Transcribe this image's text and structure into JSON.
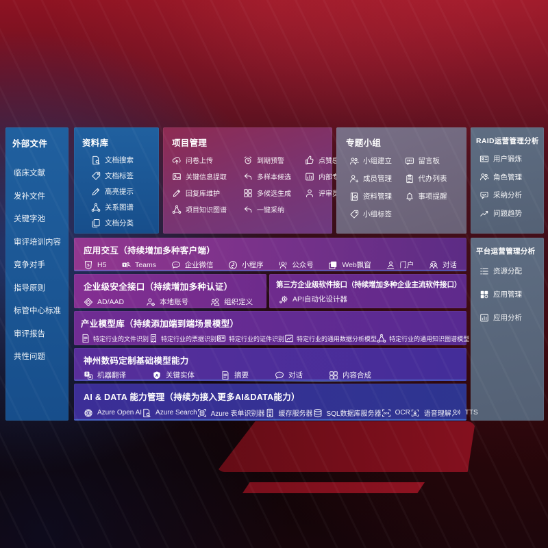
{
  "colors": {
    "background_red": "#8e1322",
    "blue_panel": "#1d5a9c",
    "maroon_panel": "#8e2b52",
    "mauve_panel": "#6f6880",
    "slate_panel": "#5d6b80",
    "purple_panel": "#7c2f8e",
    "violet_panel": "#582e9a",
    "indigo_panel": "#37309a",
    "accent_line": "#3f7ae0"
  },
  "panels": {
    "external_files": {
      "title": "外部文件",
      "items": [
        {
          "label": "临床文献"
        },
        {
          "label": "发补文件"
        },
        {
          "label": "关键字池"
        },
        {
          "label": "审评培训内容"
        },
        {
          "label": "竞争对手"
        },
        {
          "label": "指导原则"
        },
        {
          "label": "标管中心标准"
        },
        {
          "label": "审评报告"
        },
        {
          "label": "共性问题"
        }
      ]
    },
    "repository": {
      "title": "资料库",
      "items": [
        {
          "icon": "doc-search",
          "label": "文档搜索"
        },
        {
          "icon": "tag",
          "label": "文档标签"
        },
        {
          "icon": "pencil",
          "label": "高亮提示"
        },
        {
          "icon": "network",
          "label": "关系图谱"
        },
        {
          "icon": "copy",
          "label": "文档分类"
        }
      ]
    },
    "project_mgmt": {
      "title": "项目管理",
      "items": [
        {
          "icon": "cloud-upload",
          "label": "问卷上传"
        },
        {
          "icon": "alarm",
          "label": "到期预警"
        },
        {
          "icon": "thumbs-up",
          "label": "点赞感谢"
        },
        {
          "icon": "image",
          "label": "关键信息提取"
        },
        {
          "icon": "reply",
          "label": "多样本候选"
        },
        {
          "icon": "chart-window",
          "label": "内部专家排名"
        },
        {
          "icon": "pencil",
          "label": "回复库维护"
        },
        {
          "icon": "grid",
          "label": "多候选生成"
        },
        {
          "icon": "person",
          "label": "评审员画像"
        },
        {
          "icon": "network",
          "label": "项目知识图谱"
        },
        {
          "icon": "reply",
          "label": "一键采纳"
        }
      ]
    },
    "topic_groups": {
      "title": "专题小组",
      "items": [
        {
          "icon": "people",
          "label": "小组建立"
        },
        {
          "icon": "bbs",
          "label": "留言板"
        },
        {
          "icon": "person-plus",
          "label": "成员管理"
        },
        {
          "icon": "clipboard",
          "label": "代办列表"
        },
        {
          "icon": "book",
          "label": "资料管理"
        },
        {
          "icon": "bell",
          "label": "事项提醒"
        },
        {
          "icon": "tag",
          "label": "小组标签"
        }
      ]
    },
    "raid_analysis": {
      "title": "RAID运营管理分析",
      "items": [
        {
          "icon": "id-card",
          "label": "用户锻炼"
        },
        {
          "icon": "people",
          "label": "角色管理"
        },
        {
          "icon": "chat-qa",
          "label": "采纳分析"
        },
        {
          "icon": "trend",
          "label": "问题趋势"
        }
      ]
    },
    "platform_analysis": {
      "title": "平台运营管理分析",
      "items": [
        {
          "icon": "list",
          "label": "资源分配"
        },
        {
          "icon": "apps",
          "label": "应用管理"
        },
        {
          "icon": "chart-window",
          "label": "应用分析"
        }
      ]
    },
    "app_interaction": {
      "title": "应用交互（持续增加多种客户端）",
      "items": [
        {
          "icon": "h5",
          "label": "H5"
        },
        {
          "icon": "teams",
          "label": "Teams"
        },
        {
          "icon": "bubble",
          "label": "企业微信"
        },
        {
          "icon": "miniprogram",
          "label": "小程序"
        },
        {
          "icon": "official",
          "label": "公众号"
        },
        {
          "icon": "windows",
          "label": "Web飘窗"
        },
        {
          "icon": "portal",
          "label": "门户"
        },
        {
          "icon": "dialog",
          "label": "对话"
        }
      ]
    },
    "security_api": {
      "title": "企业级安全接口（持续增加多种认证）",
      "items": [
        {
          "icon": "ad",
          "label": "AD/AAD"
        },
        {
          "icon": "person-gear",
          "label": "本地账号"
        },
        {
          "icon": "org",
          "label": "组织定义"
        }
      ]
    },
    "third_party_api": {
      "title": "第三方企业级软件接口（持续增加多种企业主流软件接口）",
      "items": [
        {
          "icon": "api-gear",
          "label": "API自动化设计器"
        }
      ]
    },
    "industry_models": {
      "title": "产业模型库（持续添加端到端场景模型）",
      "items": [
        {
          "icon": "doc",
          "label": "特定行业的文件识别"
        },
        {
          "icon": "receipt",
          "label": "特定行业的票据识别"
        },
        {
          "icon": "id-card",
          "label": "特定行业的证件识别"
        },
        {
          "icon": "image-chart",
          "label": "特定行业的通用数据分析模型"
        },
        {
          "icon": "network",
          "label": "特定行业的通用知识图谱模型"
        }
      ]
    },
    "digital_china_models": {
      "title": "神州数码定制基础模型能力",
      "items": [
        {
          "icon": "translate",
          "label": "机器翻译"
        },
        {
          "icon": "shield-a",
          "label": "关键实体"
        },
        {
          "icon": "doc",
          "label": "摘要"
        },
        {
          "icon": "bubble",
          "label": "对话"
        },
        {
          "icon": "grid",
          "label": "内容合成"
        }
      ]
    },
    "ai_data_mgmt": {
      "title": "AI & DATA 能力管理（持续为接入更多AI&DATA能力）",
      "items": [
        {
          "icon": "openai",
          "label": "Azure Open AI"
        },
        {
          "icon": "doc-search",
          "label": "Azure Search"
        },
        {
          "icon": "form-scan",
          "label": "Azure 表单识别器"
        },
        {
          "icon": "server",
          "label": "缓存服务器"
        },
        {
          "icon": "database",
          "label": "SQL数据库服务器"
        },
        {
          "icon": "ocr",
          "label": "OCR"
        },
        {
          "icon": "speech",
          "label": "语音理解"
        },
        {
          "icon": "tts",
          "label": "TTS"
        }
      ]
    }
  }
}
